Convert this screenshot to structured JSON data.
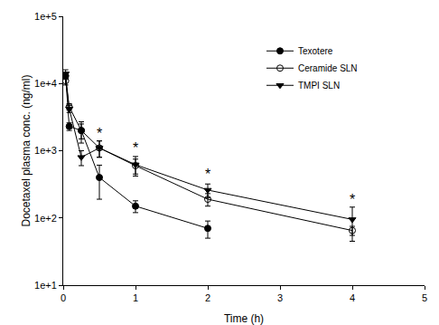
{
  "chart_data": {
    "type": "line",
    "x_label": "Time (h)",
    "y_label": "Docetaxel plasma conc. (ng/ml)",
    "log": "y",
    "grid": false,
    "legend": "upper right",
    "xlim": [
      0,
      5
    ],
    "xticks": [
      0,
      1,
      2,
      3,
      4,
      5
    ],
    "ylim": [
      10,
      100000
    ],
    "yticks": [
      {
        "value": 10,
        "label": "1e+1"
      },
      {
        "value": 100,
        "label": "1e+2"
      },
      {
        "value": 1000,
        "label": "1e+3"
      },
      {
        "value": 10000,
        "label": "1e+4"
      },
      {
        "value": 100000,
        "label": "1e+5"
      }
    ],
    "series": [
      {
        "name": "Texotere",
        "color": "#000000",
        "marker": "circle",
        "x": [
          0.033,
          0.083,
          0.25,
          0.5,
          1,
          2
        ],
        "values": [
          13000,
          2300,
          2000,
          400,
          150,
          70
        ],
        "error": [
          1500,
          300,
          500,
          210,
          30,
          20
        ]
      },
      {
        "name": "Ceramide SLN",
        "color": "#000000",
        "marker": "circle-open",
        "x": [
          0.033,
          0.083,
          0.25,
          0.5,
          1,
          2,
          4
        ],
        "values": [
          11000,
          4500,
          2000,
          1100,
          600,
          190,
          65
        ],
        "error": [
          1500,
          500,
          700,
          300,
          150,
          40,
          10
        ]
      },
      {
        "name": "TMPI SLN",
        "color": "#000000",
        "marker": "triangle-down",
        "x": [
          0.033,
          0.083,
          0.25,
          0.5,
          1,
          2,
          4
        ],
        "values": [
          14000,
          4200,
          800,
          1100,
          620,
          260,
          95
        ],
        "error": [
          2000,
          500,
          200,
          300,
          200,
          60,
          50
        ]
      }
    ],
    "annotations": [
      {
        "x": 0.5,
        "y": 1800,
        "text": "*"
      },
      {
        "x": 1,
        "y": 1100,
        "text": "*"
      },
      {
        "x": 2,
        "y": 450,
        "text": "*"
      },
      {
        "x": 4,
        "y": 190,
        "text": "*"
      }
    ]
  }
}
